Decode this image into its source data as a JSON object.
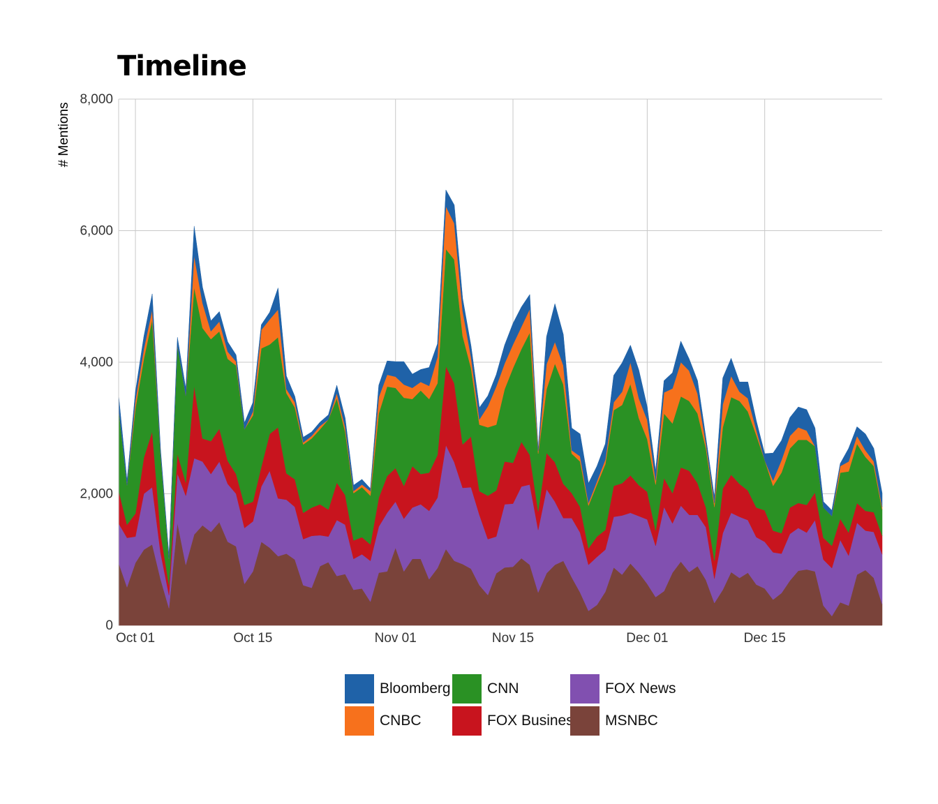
{
  "chart_data": {
    "type": "area",
    "stacked": true,
    "title": "Timeline",
    "xlabel": "",
    "ylabel": "# Mentions",
    "ylim": [
      0,
      8000
    ],
    "yticks": [
      0,
      2000,
      4000,
      6000,
      8000
    ],
    "ytick_labels": [
      "0",
      "2,000",
      "4,000",
      "6,000",
      "8,000"
    ],
    "xticks": [
      "2017-10-01",
      "2017-10-15",
      "2017-11-01",
      "2017-11-15",
      "2017-12-01",
      "2017-12-15"
    ],
    "xtick_labels": [
      "Oct 01",
      "Oct 15",
      "Nov 01",
      "Nov 15",
      "Dec 01",
      "Dec 15"
    ],
    "x_start": "2017-09-29",
    "x_end": "2017-12-29",
    "grid": true,
    "legend_position": "bottom",
    "x": [
      "2017-09-29",
      "2017-09-30",
      "2017-10-01",
      "2017-10-02",
      "2017-10-03",
      "2017-10-04",
      "2017-10-05",
      "2017-10-06",
      "2017-10-07",
      "2017-10-08",
      "2017-10-09",
      "2017-10-10",
      "2017-10-11",
      "2017-10-12",
      "2017-10-13",
      "2017-10-14",
      "2017-10-15",
      "2017-10-16",
      "2017-10-17",
      "2017-10-18",
      "2017-10-19",
      "2017-10-20",
      "2017-10-21",
      "2017-10-22",
      "2017-10-23",
      "2017-10-24",
      "2017-10-25",
      "2017-10-26",
      "2017-10-27",
      "2017-10-28",
      "2017-10-29",
      "2017-10-30",
      "2017-10-31",
      "2017-11-01",
      "2017-11-02",
      "2017-11-03",
      "2017-11-04",
      "2017-11-05",
      "2017-11-06",
      "2017-11-07",
      "2017-11-08",
      "2017-11-09",
      "2017-11-10",
      "2017-11-11",
      "2017-11-12",
      "2017-11-13",
      "2017-11-14",
      "2017-11-15",
      "2017-11-16",
      "2017-11-17",
      "2017-11-18",
      "2017-11-19",
      "2017-11-20",
      "2017-11-21",
      "2017-11-22",
      "2017-11-23",
      "2017-11-24",
      "2017-11-25",
      "2017-11-26",
      "2017-11-27",
      "2017-11-28",
      "2017-11-29",
      "2017-11-30",
      "2017-12-01",
      "2017-12-02",
      "2017-12-03",
      "2017-12-04",
      "2017-12-05",
      "2017-12-06",
      "2017-12-07",
      "2017-12-08",
      "2017-12-09",
      "2017-12-10",
      "2017-12-11",
      "2017-12-12",
      "2017-12-13",
      "2017-12-14",
      "2017-12-15",
      "2017-12-16",
      "2017-12-17",
      "2017-12-18",
      "2017-12-19",
      "2017-12-20",
      "2017-12-21",
      "2017-12-22",
      "2017-12-23",
      "2017-12-24",
      "2017-12-25",
      "2017-12-26",
      "2017-12-27",
      "2017-12-28",
      "2017-12-29"
    ],
    "series": [
      {
        "name": "MSNBC",
        "color": "#7a433a",
        "values": [
          950,
          580,
          950,
          1150,
          1230,
          700,
          260,
          1560,
          920,
          1380,
          1520,
          1420,
          1570,
          1270,
          1200,
          630,
          820,
          1270,
          1180,
          1050,
          1090,
          1000,
          610,
          570,
          900,
          960,
          750,
          780,
          540,
          560,
          360,
          800,
          820,
          1180,
          820,
          1010,
          1010,
          700,
          870,
          1160,
          980,
          930,
          860,
          610,
          460,
          790,
          880,
          890,
          1020,
          920,
          500,
          790,
          920,
          980,
          730,
          500,
          220,
          310,
          510,
          880,
          770,
          940,
          800,
          630,
          430,
          520,
          800,
          970,
          810,
          900,
          690,
          340,
          540,
          810,
          720,
          800,
          620,
          560,
          390,
          490,
          680,
          830,
          850,
          820,
          300,
          140,
          350,
          300,
          770,
          840,
          720,
          320
        ]
      },
      {
        "name": "FOX News",
        "color": "#8150b0",
        "values": [
          600,
          750,
          400,
          850,
          870,
          400,
          200,
          750,
          1050,
          1160,
          970,
          880,
          920,
          880,
          800,
          850,
          760,
          840,
          1170,
          880,
          820,
          800,
          700,
          790,
          470,
          390,
          850,
          750,
          470,
          520,
          620,
          700,
          890,
          700,
          800,
          780,
          830,
          1040,
          1070,
          1580,
          1500,
          1160,
          1240,
          1070,
          850,
          560,
          960,
          960,
          1090,
          1220,
          950,
          1280,
          960,
          650,
          900,
          910,
          700,
          730,
          640,
          770,
          900,
          770,
          860,
          980,
          780,
          1280,
          750,
          850,
          870,
          780,
          800,
          370,
          860,
          900,
          930,
          800,
          720,
          710,
          720,
          600,
          710,
          650,
          560,
          780,
          700,
          730,
          950,
          760,
          790,
          600,
          700,
          760
        ]
      },
      {
        "name": "FOX Business",
        "color": "#c8141e",
        "values": [
          500,
          200,
          350,
          550,
          850,
          300,
          150,
          300,
          200,
          1100,
          350,
          500,
          500,
          350,
          300,
          350,
          300,
          300,
          560,
          1080,
          400,
          420,
          400,
          430,
          470,
          410,
          570,
          450,
          280,
          260,
          250,
          440,
          560,
          510,
          500,
          630,
          460,
          580,
          650,
          1200,
          1200,
          660,
          770,
          360,
          660,
          700,
          650,
          620,
          680,
          450,
          280,
          550,
          600,
          520,
          380,
          390,
          250,
          310,
          300,
          470,
          490,
          570,
          470,
          420,
          230,
          440,
          460,
          580,
          670,
          480,
          300,
          270,
          680,
          580,
          500,
          450,
          450,
          480,
          330,
          310,
          400,
          380,
          420,
          420,
          330,
          340,
          320,
          350,
          300,
          300,
          300,
          280
        ]
      },
      {
        "name": "CNN",
        "color": "#2a9124",
        "values": [
          1250,
          600,
          1600,
          1500,
          1700,
          1200,
          400,
          1650,
          1320,
          1500,
          1680,
          1550,
          1480,
          1550,
          1650,
          1150,
          1310,
          1800,
          1360,
          1370,
          1220,
          1090,
          1040,
          1050,
          1140,
          1370,
          1280,
          960,
          720,
          760,
          740,
          1280,
          1360,
          1220,
          1340,
          1020,
          1270,
          1120,
          1090,
          1780,
          1880,
          1650,
          1040,
          1010,
          1040,
          1000,
          1100,
          1440,
          1410,
          1860,
          880,
          970,
          1500,
          1510,
          600,
          690,
          650,
          790,
          1000,
          1150,
          1190,
          1390,
          1020,
          800,
          700,
          980,
          1060,
          1080,
          1060,
          1060,
          900,
          820,
          930,
          1180,
          1260,
          1200,
          1100,
          760,
          680,
          920,
          900,
          960,
          990,
          700,
          460,
          450,
          700,
          930,
          900,
          820,
          700,
          400
        ]
      },
      {
        "name": "CNBC",
        "color": "#f7711c",
        "values": [
          0,
          0,
          120,
          150,
          150,
          0,
          0,
          0,
          0,
          480,
          380,
          120,
          150,
          110,
          60,
          0,
          60,
          280,
          380,
          420,
          60,
          80,
          30,
          40,
          50,
          0,
          80,
          70,
          30,
          40,
          70,
          250,
          180,
          170,
          200,
          170,
          130,
          200,
          400,
          650,
          550,
          380,
          170,
          80,
          320,
          580,
          390,
          360,
          340,
          360,
          40,
          380,
          330,
          290,
          50,
          80,
          40,
          50,
          70,
          120,
          200,
          330,
          300,
          290,
          60,
          320,
          530,
          520,
          460,
          300,
          70,
          60,
          350,
          320,
          140,
          200,
          80,
          0,
          80,
          190,
          190,
          190,
          140,
          0,
          0,
          0,
          100,
          150,
          120,
          100,
          70,
          40
        ]
      },
      {
        "name": "Bloomberg",
        "color": "#1f62a8",
        "values": [
          200,
          70,
          130,
          190,
          240,
          70,
          50,
          120,
          110,
          450,
          240,
          160,
          150,
          150,
          100,
          100,
          140,
          80,
          110,
          330,
          200,
          90,
          80,
          60,
          60,
          70,
          120,
          140,
          90,
          80,
          40,
          180,
          210,
          230,
          350,
          210,
          190,
          280,
          200,
          250,
          280,
          190,
          170,
          180,
          160,
          180,
          280,
          320,
          300,
          220,
          30,
          420,
          580,
          470,
          340,
          340,
          300,
          230,
          240,
          410,
          440,
          260,
          430,
          200,
          150,
          180,
          240,
          320,
          180,
          200,
          90,
          90,
          400,
          270,
          150,
          250,
          140,
          100,
          420,
          300,
          280,
          310,
          320,
          280,
          90,
          90,
          40,
          200,
          140,
          250,
          200,
          210
        ]
      }
    ]
  }
}
